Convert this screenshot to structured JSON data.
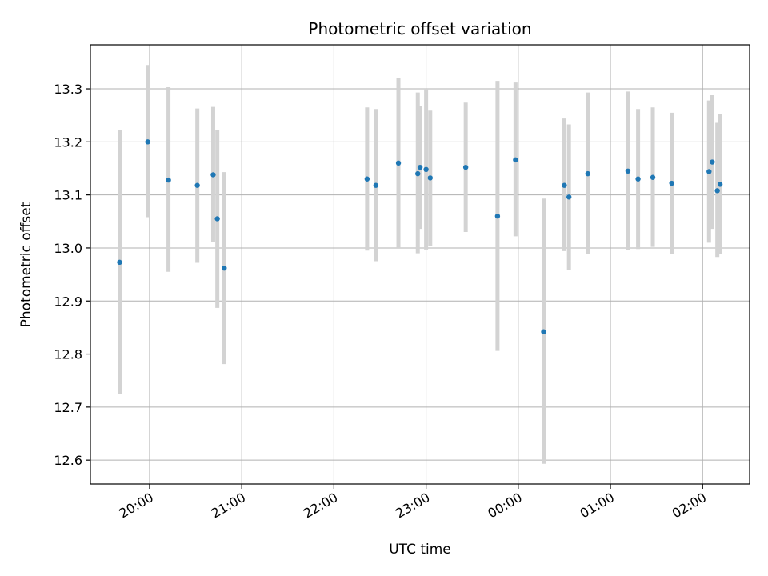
{
  "chart_data": {
    "type": "scatter",
    "title": "Photometric offset variation",
    "xlabel": "UTC time",
    "ylabel": "Photometric offset",
    "x_axis": {
      "unit": "hours since 20:00 UTC",
      "range": [
        -0.642,
        6.51
      ],
      "ticks": [
        {
          "value": 0,
          "label": "20:00"
        },
        {
          "value": 1,
          "label": "21:00"
        },
        {
          "value": 2,
          "label": "22:00"
        },
        {
          "value": 3,
          "label": "23:00"
        },
        {
          "value": 4,
          "label": "00:00"
        },
        {
          "value": 5,
          "label": "01:00"
        },
        {
          "value": 6,
          "label": "02:00"
        }
      ]
    },
    "y_axis": {
      "range": [
        12.555,
        13.383
      ],
      "ticks": [
        12.6,
        12.7,
        12.8,
        12.9,
        13.0,
        13.1,
        13.2,
        13.3
      ]
    },
    "grid": true,
    "colors": {
      "point": "#1f77b4",
      "errorbar": "#d3d3d3",
      "grid": "#b0b0b0"
    },
    "points": [
      {
        "x": -0.325,
        "y": 12.973,
        "lo": 12.725,
        "hi": 13.222
      },
      {
        "x": -0.02,
        "y": 13.2,
        "lo": 13.058,
        "hi": 13.345
      },
      {
        "x": 0.205,
        "y": 13.128,
        "lo": 12.955,
        "hi": 13.303
      },
      {
        "x": 0.518,
        "y": 13.118,
        "lo": 12.972,
        "hi": 13.263
      },
      {
        "x": 0.69,
        "y": 13.138,
        "lo": 13.012,
        "hi": 13.266
      },
      {
        "x": 0.735,
        "y": 13.055,
        "lo": 12.887,
        "hi": 13.222
      },
      {
        "x": 0.81,
        "y": 12.962,
        "lo": 12.781,
        "hi": 13.143
      },
      {
        "x": 2.36,
        "y": 13.13,
        "lo": 12.995,
        "hi": 13.265
      },
      {
        "x": 2.455,
        "y": 13.118,
        "lo": 12.975,
        "hi": 13.262
      },
      {
        "x": 2.7,
        "y": 13.16,
        "lo": 13.0,
        "hi": 13.321
      },
      {
        "x": 2.91,
        "y": 13.14,
        "lo": 12.99,
        "hi": 13.293
      },
      {
        "x": 2.935,
        "y": 13.152,
        "lo": 13.036,
        "hi": 13.268
      },
      {
        "x": 3.0,
        "y": 13.148,
        "lo": 12.997,
        "hi": 13.3
      },
      {
        "x": 3.045,
        "y": 13.132,
        "lo": 13.003,
        "hi": 13.259
      },
      {
        "x": 3.43,
        "y": 13.152,
        "lo": 13.03,
        "hi": 13.274
      },
      {
        "x": 3.775,
        "y": 13.06,
        "lo": 12.806,
        "hi": 13.315
      },
      {
        "x": 3.97,
        "y": 13.166,
        "lo": 13.022,
        "hi": 13.312
      },
      {
        "x": 4.275,
        "y": 12.842,
        "lo": 12.593,
        "hi": 13.093
      },
      {
        "x": 4.5,
        "y": 13.118,
        "lo": 12.994,
        "hi": 13.244
      },
      {
        "x": 4.55,
        "y": 13.096,
        "lo": 12.958,
        "hi": 13.233
      },
      {
        "x": 4.755,
        "y": 13.14,
        "lo": 12.988,
        "hi": 13.293
      },
      {
        "x": 5.19,
        "y": 13.145,
        "lo": 12.996,
        "hi": 13.295
      },
      {
        "x": 5.3,
        "y": 13.13,
        "lo": 12.998,
        "hi": 13.262
      },
      {
        "x": 5.46,
        "y": 13.133,
        "lo": 13.002,
        "hi": 13.265
      },
      {
        "x": 5.665,
        "y": 13.122,
        "lo": 12.989,
        "hi": 13.255
      },
      {
        "x": 6.07,
        "y": 13.144,
        "lo": 13.01,
        "hi": 13.278
      },
      {
        "x": 6.105,
        "y": 13.162,
        "lo": 13.036,
        "hi": 13.288
      },
      {
        "x": 6.16,
        "y": 13.108,
        "lo": 12.983,
        "hi": 13.236
      },
      {
        "x": 6.19,
        "y": 13.12,
        "lo": 12.988,
        "hi": 13.253
      }
    ]
  }
}
